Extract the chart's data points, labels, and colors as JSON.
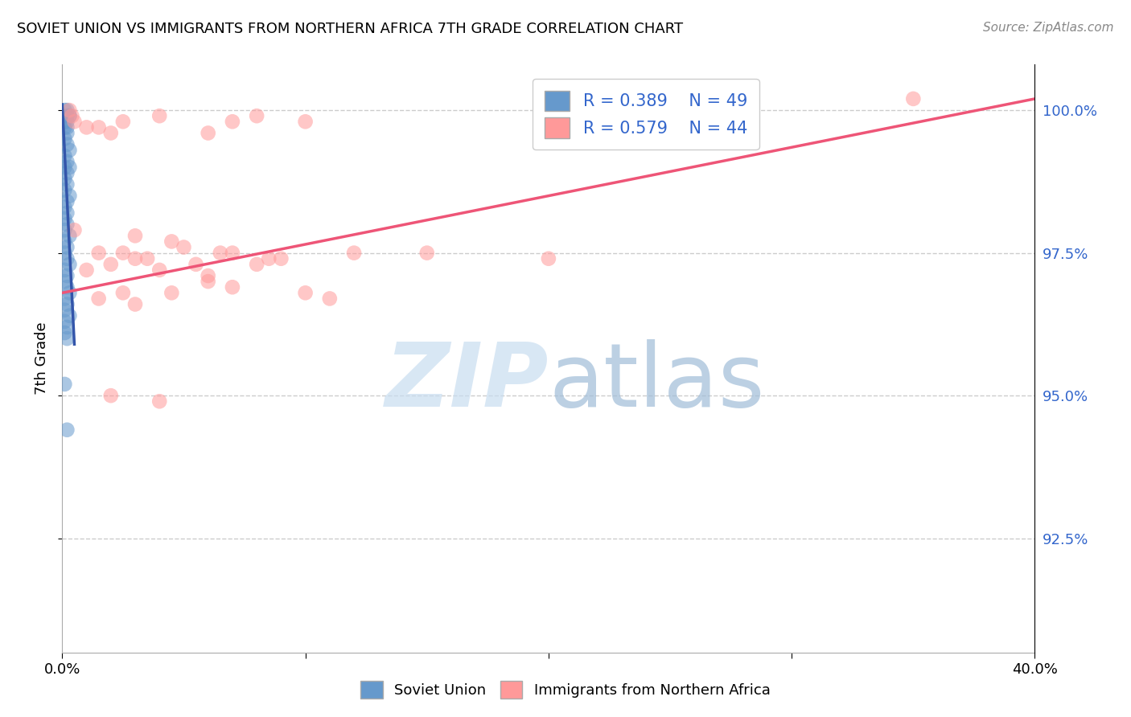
{
  "title": "SOVIET UNION VS IMMIGRANTS FROM NORTHERN AFRICA 7TH GRADE CORRELATION CHART",
  "source": "Source: ZipAtlas.com",
  "ylabel": "7th Grade",
  "ytick_values": [
    1.0,
    0.975,
    0.95,
    0.925
  ],
  "ytick_labels": [
    "100.0%",
    "97.5%",
    "95.0%",
    "92.5%"
  ],
  "xlim": [
    0.0,
    0.4
  ],
  "ylim": [
    0.905,
    1.008
  ],
  "legend_r1": "R = 0.389",
  "legend_n1": "N = 49",
  "legend_r2": "R = 0.579",
  "legend_n2": "N = 44",
  "color_blue": "#6699CC",
  "color_pink": "#FF9999",
  "color_blue_line": "#3355AA",
  "color_pink_line": "#EE5577",
  "color_label_blue": "#3366CC",
  "background_color": "#FFFFFF",
  "grid_color": "#CCCCCC",
  "soviet_x": [
    0.001,
    0.002,
    0.003,
    0.002,
    0.003,
    0.002,
    0.001,
    0.001,
    0.002,
    0.002,
    0.001,
    0.002,
    0.003,
    0.001,
    0.002,
    0.001,
    0.003,
    0.002,
    0.001,
    0.002,
    0.001,
    0.003,
    0.002,
    0.001,
    0.002,
    0.001,
    0.002,
    0.001,
    0.003,
    0.001,
    0.002,
    0.001,
    0.002,
    0.003,
    0.001,
    0.002,
    0.001,
    0.002,
    0.003,
    0.001,
    0.002,
    0.001,
    0.003,
    0.001,
    0.002,
    0.001,
    0.002,
    0.001,
    0.002
  ],
  "soviet_y": [
    1.0,
    1.0,
    0.999,
    0.999,
    0.999,
    0.998,
    0.998,
    0.997,
    0.997,
    0.996,
    0.995,
    0.994,
    0.993,
    0.992,
    0.991,
    0.99,
    0.99,
    0.989,
    0.988,
    0.987,
    0.986,
    0.985,
    0.984,
    0.983,
    0.982,
    0.981,
    0.98,
    0.979,
    0.978,
    0.977,
    0.976,
    0.975,
    0.974,
    0.973,
    0.972,
    0.971,
    0.97,
    0.969,
    0.968,
    0.967,
    0.966,
    0.965,
    0.964,
    0.963,
    0.962,
    0.961,
    0.96,
    0.952,
    0.944
  ],
  "africa_x": [
    0.003,
    0.004,
    0.35,
    0.005,
    0.08,
    0.1,
    0.025,
    0.04,
    0.01,
    0.015,
    0.02,
    0.06,
    0.07,
    0.005,
    0.03,
    0.045,
    0.05,
    0.025,
    0.015,
    0.03,
    0.02,
    0.07,
    0.09,
    0.035,
    0.055,
    0.04,
    0.06,
    0.08,
    0.15,
    0.2,
    0.06,
    0.07,
    0.045,
    0.1,
    0.015,
    0.03,
    0.12,
    0.01,
    0.02,
    0.04,
    0.065,
    0.025,
    0.085,
    0.11
  ],
  "africa_y": [
    1.0,
    0.999,
    1.002,
    0.998,
    0.999,
    0.998,
    0.998,
    0.999,
    0.997,
    0.997,
    0.996,
    0.996,
    0.998,
    0.979,
    0.978,
    0.977,
    0.976,
    0.975,
    0.975,
    0.974,
    0.973,
    0.975,
    0.974,
    0.974,
    0.973,
    0.972,
    0.971,
    0.973,
    0.975,
    0.974,
    0.97,
    0.969,
    0.968,
    0.968,
    0.967,
    0.966,
    0.975,
    0.972,
    0.95,
    0.949,
    0.975,
    0.968,
    0.974,
    0.967
  ],
  "blue_line_x": [
    0.0,
    0.005
  ],
  "blue_line_y": [
    1.001,
    0.959
  ],
  "pink_line_x": [
    0.0,
    0.4
  ],
  "pink_line_y": [
    0.968,
    1.002
  ]
}
